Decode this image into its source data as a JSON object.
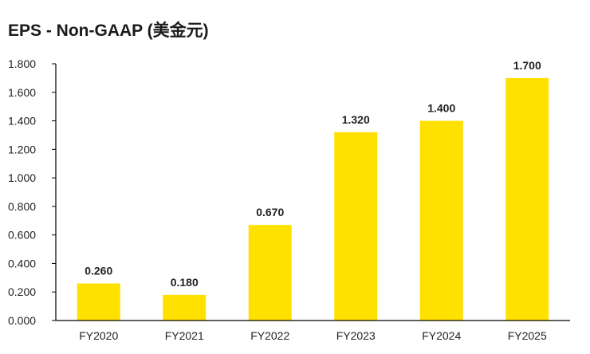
{
  "chart_data": {
    "type": "bar",
    "title": "EPS - Non-GAAP (美金元)",
    "xlabel": "",
    "ylabel": "",
    "categories": [
      "FY2020",
      "FY2021",
      "FY2022",
      "FY2023",
      "FY2024",
      "FY2025"
    ],
    "values": [
      0.26,
      0.18,
      0.67,
      1.32,
      1.4,
      1.7
    ],
    "value_labels": [
      "0.260",
      "0.180",
      "0.670",
      "1.320",
      "1.400",
      "1.700"
    ],
    "ylim": [
      0,
      1.8
    ],
    "yticks": [
      "0.000",
      "0.200",
      "0.400",
      "0.600",
      "0.800",
      "1.000",
      "1.200",
      "1.400",
      "1.600",
      "1.800"
    ],
    "grid": false,
    "legend": "none",
    "colors": {
      "bar": "#FFE100",
      "axis": "#000000"
    }
  }
}
